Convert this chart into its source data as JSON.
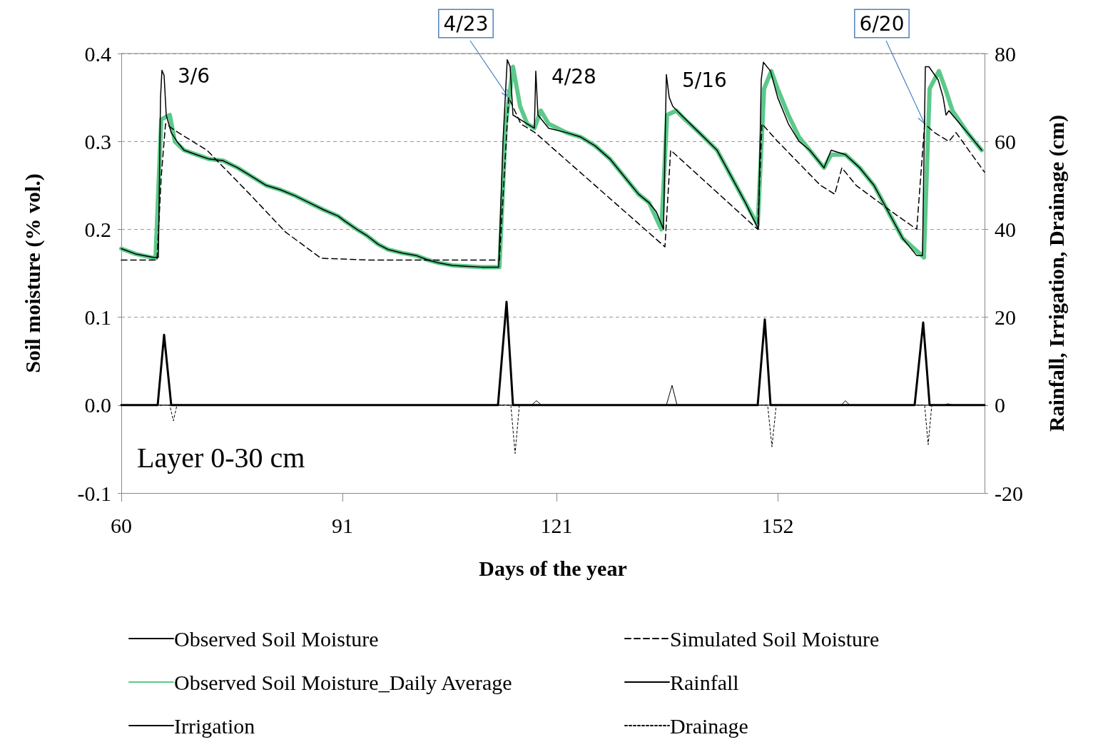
{
  "chart_data": {
    "type": "line",
    "xlabel": "Days of the year",
    "ylabel": "Soil moisture (% vol.)",
    "y2label": "Rainfall, Irrigation, Drainage (cm)",
    "xlim": [
      60,
      181
    ],
    "xticks": [
      60,
      91,
      121,
      152
    ],
    "ylim": [
      -0.1,
      0.4
    ],
    "yticks": [
      -0.1,
      {
        "value": 0,
        "label": "0.0"
      },
      0.1,
      0.2,
      0.3,
      0.4
    ],
    "y2lim": [
      -20,
      80
    ],
    "y2ticks": [
      -20,
      0,
      20,
      40,
      60,
      80
    ],
    "grid": "y",
    "legend": "bottom",
    "marker": "none",
    "annotations": [
      {
        "text": "3/6",
        "x": 65.7,
        "y": 0.381
      },
      {
        "text": "4/23",
        "x": 114.3,
        "y": 0.35
      },
      {
        "text": "4/28",
        "x": 118.1,
        "y": 0.38
      },
      {
        "text": "5/16",
        "x": 136.4,
        "y": 0.376
      },
      {
        "text": "6/20",
        "x": 172.6,
        "y": 0.32
      },
      "Layer 0-30 cm"
    ],
    "series": [
      {
        "name": "Observed Soil Moisture",
        "color": "#000000",
        "line_style": "solid",
        "x": [
          60,
          62,
          64.5,
          65.2,
          65.5,
          65.7,
          66,
          66.3,
          67,
          67.8,
          68.8,
          70.5,
          72.3,
          74.3,
          76.3,
          78.3,
          80.3,
          82.3,
          84.4,
          86.4,
          88.4,
          90.4,
          91.4,
          93,
          94.4,
          96,
          97.4,
          99.4,
          101.4,
          103,
          104.4,
          106.4,
          108.4,
          110.5,
          112.9,
          113.5,
          114.1,
          114.5,
          114.9,
          115.9,
          116.9,
          117.9,
          118.1,
          118.4,
          119.9,
          122.4,
          124.4,
          126.4,
          128.5,
          130.5,
          132.5,
          134,
          135,
          136,
          136.4,
          136.8,
          137.3,
          138.5,
          141,
          143.5,
          145.5,
          147.5,
          149.3,
          149.7,
          150,
          151,
          152,
          153.5,
          155,
          156.5,
          158.5,
          159.5,
          161.5,
          163.5,
          165.5,
          167.5,
          169.5,
          171.5,
          172.3,
          172.7,
          173.2,
          174.5,
          175.2,
          175.6,
          176,
          176.5,
          178.6,
          180.6
        ],
        "values": [
          0.178,
          0.172,
          0.168,
          0.168,
          0.35,
          0.381,
          0.375,
          0.33,
          0.31,
          0.3,
          0.29,
          0.285,
          0.28,
          0.278,
          0.27,
          0.26,
          0.25,
          0.245,
          0.238,
          0.23,
          0.222,
          0.215,
          0.209,
          0.2,
          0.193,
          0.183,
          0.177,
          0.173,
          0.17,
          0.165,
          0.162,
          0.159,
          0.158,
          0.157,
          0.157,
          0.3,
          0.393,
          0.385,
          0.33,
          0.325,
          0.32,
          0.315,
          0.38,
          0.33,
          0.315,
          0.31,
          0.305,
          0.295,
          0.28,
          0.26,
          0.24,
          0.23,
          0.22,
          0.2,
          0.376,
          0.35,
          0.34,
          0.33,
          0.31,
          0.29,
          0.26,
          0.23,
          0.2,
          0.37,
          0.39,
          0.38,
          0.35,
          0.32,
          0.3,
          0.29,
          0.27,
          0.29,
          0.285,
          0.27,
          0.25,
          0.22,
          0.19,
          0.17,
          0.17,
          0.385,
          0.385,
          0.37,
          0.35,
          0.33,
          0.335,
          0.33,
          0.31,
          0.29
        ]
      },
      {
        "name": "Simulated Soil Moisture",
        "color": "#000000",
        "line_style": "dashed",
        "x": [
          60,
          65,
          65.6,
          66.2,
          68,
          72,
          78,
          83,
          88,
          95,
          113,
          114.3,
          116,
          118,
          136.2,
          137,
          149.2,
          149.8,
          152,
          158,
          160,
          161,
          163,
          168,
          171.5,
          172.6,
          174,
          176,
          177,
          181
        ],
        "values": [
          0.165,
          0.165,
          0.26,
          0.32,
          0.31,
          0.29,
          0.24,
          0.197,
          0.167,
          0.165,
          0.165,
          0.35,
          0.32,
          0.31,
          0.18,
          0.29,
          0.2,
          0.32,
          0.3,
          0.25,
          0.24,
          0.27,
          0.25,
          0.22,
          0.2,
          0.32,
          0.31,
          0.3,
          0.31,
          0.265
        ]
      },
      {
        "name": "Observed Soil Moisture_Daily Average",
        "color": "#5cc98a",
        "line_style": "solid",
        "x": [
          60,
          62,
          64.8,
          65.6,
          66.8,
          67.5,
          68.8,
          70.5,
          72.3,
          74.3,
          76.3,
          78.3,
          80.3,
          82.3,
          84.4,
          86.4,
          88.4,
          90.4,
          91.4,
          93,
          94.4,
          96,
          97.4,
          99.4,
          101.4,
          103,
          104.4,
          106.4,
          108.4,
          110.5,
          113,
          113.9,
          114.9,
          115.9,
          116.9,
          117.9,
          118.8,
          119.9,
          122.4,
          124.4,
          126.4,
          128.5,
          130.5,
          132.5,
          134,
          135.7,
          136.5,
          137.8,
          139,
          141,
          143.5,
          145.5,
          147.5,
          149.2,
          150.1,
          151.1,
          152,
          153.5,
          155,
          156.5,
          158.5,
          159.5,
          161.5,
          163.5,
          165.5,
          167.5,
          169.5,
          172.5,
          173.3,
          174.6,
          175.5,
          176.5,
          178.6,
          180.6
        ],
        "values": [
          0.178,
          0.172,
          0.167,
          0.325,
          0.33,
          0.3,
          0.29,
          0.285,
          0.28,
          0.278,
          0.27,
          0.26,
          0.25,
          0.245,
          0.238,
          0.23,
          0.222,
          0.215,
          0.209,
          0.2,
          0.193,
          0.183,
          0.177,
          0.173,
          0.17,
          0.165,
          0.162,
          0.159,
          0.158,
          0.157,
          0.157,
          0.32,
          0.385,
          0.34,
          0.32,
          0.315,
          0.335,
          0.32,
          0.31,
          0.305,
          0.295,
          0.28,
          0.26,
          0.24,
          0.23,
          0.2,
          0.33,
          0.335,
          0.325,
          0.31,
          0.29,
          0.26,
          0.23,
          0.205,
          0.36,
          0.38,
          0.36,
          0.33,
          0.305,
          0.29,
          0.27,
          0.285,
          0.285,
          0.27,
          0.25,
          0.22,
          0.19,
          0.168,
          0.36,
          0.38,
          0.36,
          0.335,
          0.31,
          0.29
        ]
      },
      {
        "name": "Rainfall",
        "color": "#000000",
        "line_style": "solid",
        "axis": "y2",
        "x": [
          60,
          117.5,
          118.2,
          118.9,
          136.4,
          137.2,
          137.9,
          160.9,
          161.5,
          162.1,
          175.3,
          175.9,
          176.5,
          181
        ],
        "values": [
          0,
          0,
          1,
          0,
          0,
          4.5,
          0,
          0,
          1,
          0,
          0,
          0.3,
          0,
          0
        ]
      },
      {
        "name": "Irrigation",
        "color": "#000000",
        "line_style": "solid",
        "axis": "y2",
        "x": [
          60,
          65.1,
          66,
          67,
          112.8,
          114,
          114.9,
          149.2,
          150.2,
          151,
          171.2,
          172.4,
          173.3,
          181
        ],
        "values": [
          0,
          0,
          16,
          0,
          0,
          23.5,
          0,
          0,
          19.5,
          0,
          0,
          18.8,
          0,
          0
        ]
      },
      {
        "name": "Drainage",
        "color": "#000000",
        "line_style": "dotted",
        "axis": "y2",
        "x": [
          60,
          66.8,
          67.3,
          67.8,
          114.6,
          115.2,
          115.8,
          150.6,
          151.2,
          151.8,
          172.6,
          173.1,
          173.6,
          181
        ],
        "values": [
          0,
          0,
          -3.6,
          0,
          0,
          -11,
          0,
          0,
          -9.5,
          0,
          0,
          -9,
          0,
          0
        ]
      }
    ]
  }
}
